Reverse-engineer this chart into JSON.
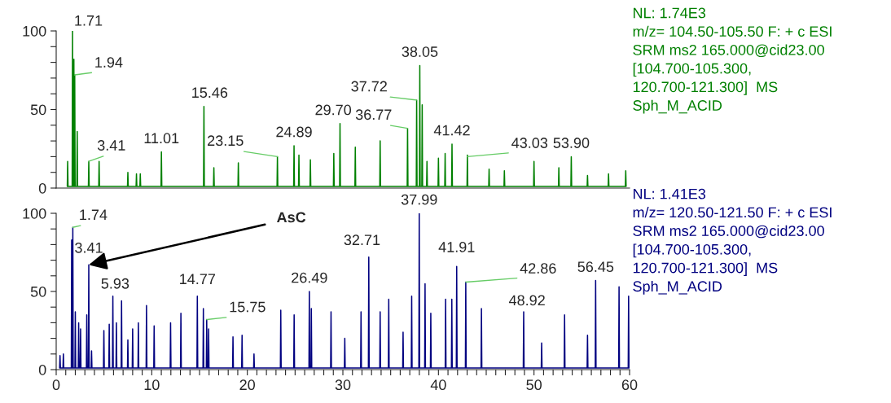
{
  "chart_data": [
    {
      "type": "line",
      "xlim": [
        0,
        60
      ],
      "ylim": [
        0,
        100
      ],
      "tick_labels": "y",
      "grid": false,
      "legend": false,
      "yticks": [
        0,
        {
          "value": 10,
          "label": null
        },
        {
          "value": 20,
          "label": null
        },
        {
          "value": 30,
          "label": null
        },
        {
          "value": 40,
          "label": null
        },
        50,
        {
          "value": 60,
          "label": null
        },
        {
          "value": 70,
          "label": null
        },
        {
          "value": 80,
          "label": null
        },
        {
          "value": 90,
          "label": null
        },
        100
      ],
      "series": [
        {
          "color": "#008000",
          "x": [
            1.16,
            1.2,
            1.24,
            1.67,
            1.71,
            1.75,
            1.81,
            1.85,
            1.89,
            1.9,
            1.94,
            1.98,
            2.16,
            2.2,
            2.24,
            3.37,
            3.41,
            3.45,
            4.45,
            4.49,
            4.53,
            7.46,
            7.5,
            7.54,
            8.36,
            8.4,
            8.44,
            8.76,
            8.8,
            8.84,
            10.97,
            11.01,
            11.05,
            15.42,
            15.46,
            15.5,
            16.46,
            16.5,
            16.54,
            19.02,
            19.06,
            19.1,
            23.11,
            23.15,
            23.19,
            24.85,
            24.89,
            24.93,
            25.36,
            25.4,
            25.44,
            26.56,
            26.6,
            26.64,
            29.01,
            29.05,
            29.09,
            29.66,
            29.7,
            29.74,
            31.26,
            31.3,
            31.34,
            33.86,
            33.9,
            33.94,
            36.73,
            36.77,
            36.81,
            37.68,
            37.72,
            37.76,
            38.01,
            38.05,
            38.09,
            38.26,
            38.3,
            38.34,
            38.76,
            38.8,
            38.84,
            39.96,
            40,
            40.04,
            40.66,
            40.7,
            40.74,
            41.38,
            41.42,
            41.46,
            42.99,
            43.03,
            43.07,
            45.26,
            45.3,
            45.34,
            46.86,
            46.9,
            46.94,
            49.96,
            50,
            50.04,
            52.56,
            52.6,
            52.64,
            53.86,
            53.9,
            53.94,
            55.56,
            55.6,
            55.64,
            57.76,
            57.8,
            57.84,
            59.56,
            59.6,
            59.64
          ],
          "values": [
            1,
            17,
            1,
            1,
            100,
            1,
            1,
            82,
            1,
            1,
            72,
            1,
            1,
            36,
            1,
            1,
            17,
            1,
            1,
            17,
            1,
            1,
            10,
            1,
            1,
            9,
            1,
            1,
            9,
            1,
            1,
            23,
            1,
            1,
            52,
            1,
            1,
            13,
            1,
            1,
            16,
            1,
            1,
            20,
            1,
            1,
            27,
            1,
            1,
            21,
            1,
            1,
            18,
            1,
            1,
            22,
            1,
            1,
            41,
            1,
            1,
            26,
            1,
            1,
            30,
            1,
            1,
            38,
            1,
            1,
            56,
            1,
            1,
            78,
            1,
            1,
            53,
            1,
            1,
            17,
            1,
            1,
            19,
            1,
            1,
            22,
            1,
            1,
            28,
            1,
            1,
            21,
            1,
            1,
            12,
            1,
            1,
            11,
            1,
            1,
            17,
            1,
            1,
            13,
            1,
            1,
            20,
            1,
            1,
            8,
            1,
            1,
            9,
            1,
            1,
            11,
            1
          ]
        }
      ],
      "annotations": [
        {
          "text": "1.71",
          "x": 1.71,
          "y": 100
        },
        {
          "text": "1.94",
          "x": 1.94,
          "y": 72
        },
        {
          "text": "3.41",
          "x": 3.41,
          "y": 17
        },
        {
          "text": "11.01",
          "x": 11.01,
          "y": 23
        },
        {
          "text": "15.46",
          "x": 15.46,
          "y": 52
        },
        {
          "text": "23.15",
          "x": 23.15,
          "y": 20
        },
        {
          "text": "24.89",
          "x": 24.89,
          "y": 27
        },
        {
          "text": "29.70",
          "x": 29.7,
          "y": 41
        },
        {
          "text": "36.77",
          "x": 36.77,
          "y": 38
        },
        {
          "text": "37.72",
          "x": 37.72,
          "y": 56
        },
        {
          "text": "38.05",
          "x": 38.05,
          "y": 78
        },
        {
          "text": "41.42",
          "x": 41.42,
          "y": 28
        },
        {
          "text": "43.03",
          "x": 43.03,
          "y": 20
        },
        {
          "text": "53.90",
          "x": 53.9,
          "y": 20
        },
        "NL: 1.74E3\nm/z= 104.50-105.50 F: + c ESI\nSRM ms2 165.000@cid23.00\n[104.700-105.300,\n120.700-121.300]  MS\nSph_M_ACID"
      ]
    },
    {
      "type": "line",
      "xlim": [
        0,
        60
      ],
      "ylim": [
        0,
        100
      ],
      "grid": false,
      "legend": false,
      "yticks": [
        0,
        {
          "value": 10,
          "label": null
        },
        {
          "value": 20,
          "label": null
        },
        {
          "value": 30,
          "label": null
        },
        {
          "value": 40,
          "label": null
        },
        50,
        {
          "value": 60,
          "label": null
        },
        {
          "value": 70,
          "label": null
        },
        {
          "value": 80,
          "label": null
        },
        {
          "value": 90,
          "label": null
        },
        100
      ],
      "xticks": [
        0,
        {
          "value": 1,
          "label": null
        },
        {
          "value": 2,
          "label": null
        },
        {
          "value": 3,
          "label": null
        },
        {
          "value": 4,
          "label": null
        },
        {
          "value": 5,
          "label": null
        },
        {
          "value": 6,
          "label": null
        },
        {
          "value": 7,
          "label": null
        },
        {
          "value": 8,
          "label": null
        },
        {
          "value": 9,
          "label": null
        },
        10,
        {
          "value": 11,
          "label": null
        },
        {
          "value": 12,
          "label": null
        },
        {
          "value": 13,
          "label": null
        },
        {
          "value": 14,
          "label": null
        },
        {
          "value": 15,
          "label": null
        },
        {
          "value": 16,
          "label": null
        },
        {
          "value": 17,
          "label": null
        },
        {
          "value": 18,
          "label": null
        },
        {
          "value": 19,
          "label": null
        },
        20,
        {
          "value": 21,
          "label": null
        },
        {
          "value": 22,
          "label": null
        },
        {
          "value": 23,
          "label": null
        },
        {
          "value": 24,
          "label": null
        },
        {
          "value": 25,
          "label": null
        },
        {
          "value": 26,
          "label": null
        },
        {
          "value": 27,
          "label": null
        },
        {
          "value": 28,
          "label": null
        },
        {
          "value": 29,
          "label": null
        },
        30,
        {
          "value": 31,
          "label": null
        },
        {
          "value": 32,
          "label": null
        },
        {
          "value": 33,
          "label": null
        },
        {
          "value": 34,
          "label": null
        },
        {
          "value": 35,
          "label": null
        },
        {
          "value": 36,
          "label": null
        },
        {
          "value": 37,
          "label": null
        },
        {
          "value": 38,
          "label": null
        },
        {
          "value": 39,
          "label": null
        },
        40,
        {
          "value": 41,
          "label": null
        },
        {
          "value": 42,
          "label": null
        },
        {
          "value": 43,
          "label": null
        },
        {
          "value": 44,
          "label": null
        },
        {
          "value": 45,
          "label": null
        },
        {
          "value": 46,
          "label": null
        },
        {
          "value": 47,
          "label": null
        },
        {
          "value": 48,
          "label": null
        },
        {
          "value": 49,
          "label": null
        },
        50,
        {
          "value": 51,
          "label": null
        },
        {
          "value": 52,
          "label": null
        },
        {
          "value": 53,
          "label": null
        },
        {
          "value": 54,
          "label": null
        },
        {
          "value": 55,
          "label": null
        },
        {
          "value": 56,
          "label": null
        },
        {
          "value": 57,
          "label": null
        },
        {
          "value": 58,
          "label": null
        },
        {
          "value": 59,
          "label": null
        },
        60
      ],
      "series": [
        {
          "color": "#000080",
          "x": [
            0.36,
            0.4,
            0.44,
            0.71,
            0.75,
            0.79,
            1.58,
            1.62,
            1.66,
            1.7,
            1.74,
            1.78,
            1.96,
            2,
            2.04,
            2.31,
            2.35,
            2.39,
            2.51,
            2.55,
            2.59,
            3.16,
            3.2,
            3.24,
            3.37,
            3.41,
            3.45,
            3.66,
            3.7,
            3.74,
            4.95,
            4.99,
            5.03,
            5.51,
            5.55,
            5.59,
            5.89,
            5.93,
            5.97,
            6.26,
            6.3,
            6.34,
            6.8,
            6.84,
            6.88,
            7.46,
            7.5,
            7.54,
            7.96,
            8,
            8.04,
            8.56,
            8.6,
            8.64,
            9.41,
            9.45,
            9.49,
            10.21,
            10.25,
            10.29,
            11.93,
            11.97,
            12.01,
            13.01,
            13.05,
            13.09,
            14.73,
            14.77,
            14.81,
            15.36,
            15.4,
            15.44,
            15.71,
            15.75,
            15.79,
            15.91,
            15.95,
            15.99,
            18.46,
            18.5,
            18.54,
            19.41,
            19.45,
            19.49,
            20.66,
            20.7,
            20.74,
            23.46,
            23.5,
            23.54,
            24.86,
            24.9,
            24.94,
            26.45,
            26.49,
            26.53,
            26.66,
            26.7,
            26.74,
            28.72,
            28.76,
            28.8,
            30.16,
            30.2,
            30.24,
            31.86,
            31.9,
            31.94,
            32.67,
            32.71,
            32.75,
            33.86,
            33.9,
            33.94,
            34.76,
            34.8,
            34.84,
            36.26,
            36.3,
            36.34,
            37.16,
            37.2,
            37.24,
            37.95,
            37.99,
            38.03,
            38.56,
            38.6,
            38.64,
            39.16,
            39.2,
            39.24,
            40.71,
            40.75,
            40.79,
            41.36,
            41.4,
            41.44,
            41.87,
            41.91,
            41.95,
            42.82,
            42.86,
            42.9,
            44.46,
            44.5,
            44.54,
            48.88,
            48.92,
            48.96,
            50.76,
            50.8,
            50.84,
            53.16,
            53.2,
            53.24,
            55.56,
            55.6,
            55.64,
            56.41,
            56.45,
            56.49,
            58.86,
            58.9,
            58.94,
            59.86,
            59.9,
            59.94
          ],
          "values": [
            1,
            9,
            1,
            1,
            10,
            1,
            1,
            83,
            1,
            1,
            91,
            1,
            1,
            37,
            1,
            1,
            30,
            1,
            1,
            26,
            1,
            1,
            35,
            1,
            1,
            67,
            1,
            1,
            12,
            1,
            1,
            25,
            1,
            1,
            29,
            1,
            1,
            47,
            1,
            1,
            30,
            1,
            1,
            44,
            1,
            1,
            19,
            1,
            1,
            26,
            1,
            1,
            30,
            1,
            1,
            41,
            1,
            1,
            28,
            1,
            1,
            30,
            1,
            1,
            36,
            1,
            1,
            47,
            1,
            1,
            39,
            1,
            1,
            32,
            1,
            1,
            26,
            1,
            1,
            21,
            1,
            1,
            22,
            1,
            1,
            10,
            1,
            1,
            38,
            1,
            1,
            35,
            1,
            1,
            50,
            1,
            1,
            39,
            1,
            1,
            37,
            1,
            1,
            20,
            1,
            1,
            37,
            1,
            1,
            72,
            1,
            1,
            37,
            1,
            1,
            45,
            1,
            1,
            24,
            1,
            1,
            47,
            1,
            1,
            100,
            1,
            1,
            55,
            1,
            1,
            36,
            1,
            1,
            45,
            1,
            1,
            45,
            1,
            1,
            66,
            1,
            1,
            56,
            1,
            1,
            39,
            1,
            1,
            37,
            1,
            1,
            17,
            1,
            1,
            35,
            1,
            1,
            22,
            1,
            1,
            57,
            1,
            1,
            53,
            1,
            1,
            47,
            1
          ]
        }
      ],
      "annotations": [
        {
          "text": "1.74",
          "x": 1.74,
          "y": 91
        },
        {
          "text": "3.41",
          "x": 3.41,
          "y": 67
        },
        {
          "text": "5.93",
          "x": 5.93,
          "y": 47
        },
        {
          "text": "14.77",
          "x": 14.77,
          "y": 47
        },
        {
          "text": "15.75",
          "x": 15.75,
          "y": 32
        },
        {
          "text": "26.49",
          "x": 26.49,
          "y": 50
        },
        {
          "text": "32.71",
          "x": 32.71,
          "y": 72
        },
        {
          "text": "37.99",
          "x": 37.99,
          "y": 100
        },
        {
          "text": "41.91",
          "x": 41.91,
          "y": 66
        },
        {
          "text": "42.86",
          "x": 42.86,
          "y": 56
        },
        {
          "text": "48.92",
          "x": 48.92,
          "y": 37
        },
        {
          "text": "56.45",
          "x": 56.45,
          "y": 57
        },
        {
          "text": "AsC",
          "x": 3.41,
          "y": 67
        },
        "NL: 1.41E3\nm/z= 120.50-121.50 F: + c ESI\nSRM ms2 165.000@cid23.00\n[104.700-105.300,\n120.700-121.300]  MS\nSph_M_ACID"
      ]
    }
  ]
}
